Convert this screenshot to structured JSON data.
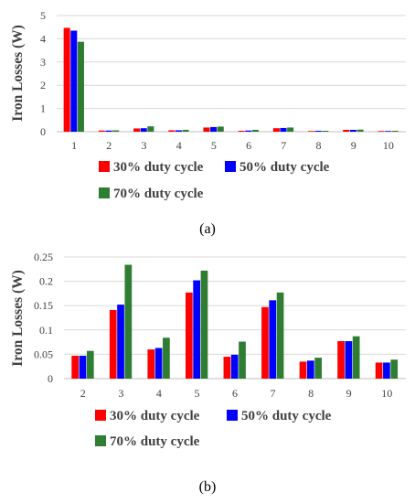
{
  "chart_data": [
    {
      "type": "bar",
      "ylabel": "Iron Losses (W)",
      "categories": [
        "1",
        "2",
        "3",
        "4",
        "5",
        "6",
        "7",
        "8",
        "9",
        "10"
      ],
      "ylim": [
        0,
        5
      ],
      "yticks": [
        "0",
        "1",
        "2",
        "3",
        "4",
        "5"
      ],
      "grid": true,
      "series": [
        {
          "name": "30%  duty cycle",
          "color": "#ff0000",
          "values": [
            4.47,
            0.05,
            0.14,
            0.06,
            0.18,
            0.04,
            0.15,
            0.03,
            0.08,
            0.03
          ]
        },
        {
          "name": "50% duty cycle",
          "color": "#0000ff",
          "values": [
            4.35,
            0.05,
            0.15,
            0.06,
            0.2,
            0.05,
            0.16,
            0.04,
            0.08,
            0.03
          ]
        },
        {
          "name": "70% duty cycle",
          "color": "#2e7d32",
          "values": [
            3.87,
            0.06,
            0.23,
            0.08,
            0.22,
            0.08,
            0.18,
            0.04,
            0.09,
            0.04
          ]
        }
      ],
      "caption": "(a)"
    },
    {
      "type": "bar",
      "ylabel": "Iron Losses (W)",
      "categories": [
        "2",
        "3",
        "4",
        "5",
        "6",
        "7",
        "8",
        "9",
        "10"
      ],
      "ylim": [
        0,
        0.25
      ],
      "yticks": [
        "0",
        "0.05",
        "0.1",
        "0.15",
        "0.2",
        "0.25"
      ],
      "grid": true,
      "series": [
        {
          "name": "30%  duty cycle",
          "color": "#ff0000",
          "values": [
            0.047,
            0.141,
            0.06,
            0.177,
            0.045,
            0.147,
            0.035,
            0.077,
            0.033
          ]
        },
        {
          "name": "50% duty cycle",
          "color": "#0000ff",
          "values": [
            0.047,
            0.152,
            0.063,
            0.202,
            0.049,
            0.161,
            0.037,
            0.077,
            0.033
          ]
        },
        {
          "name": "70% duty cycle",
          "color": "#2e7d32",
          "values": [
            0.057,
            0.234,
            0.084,
            0.222,
            0.076,
            0.177,
            0.043,
            0.087,
            0.039
          ]
        }
      ],
      "caption": "(b)"
    }
  ]
}
